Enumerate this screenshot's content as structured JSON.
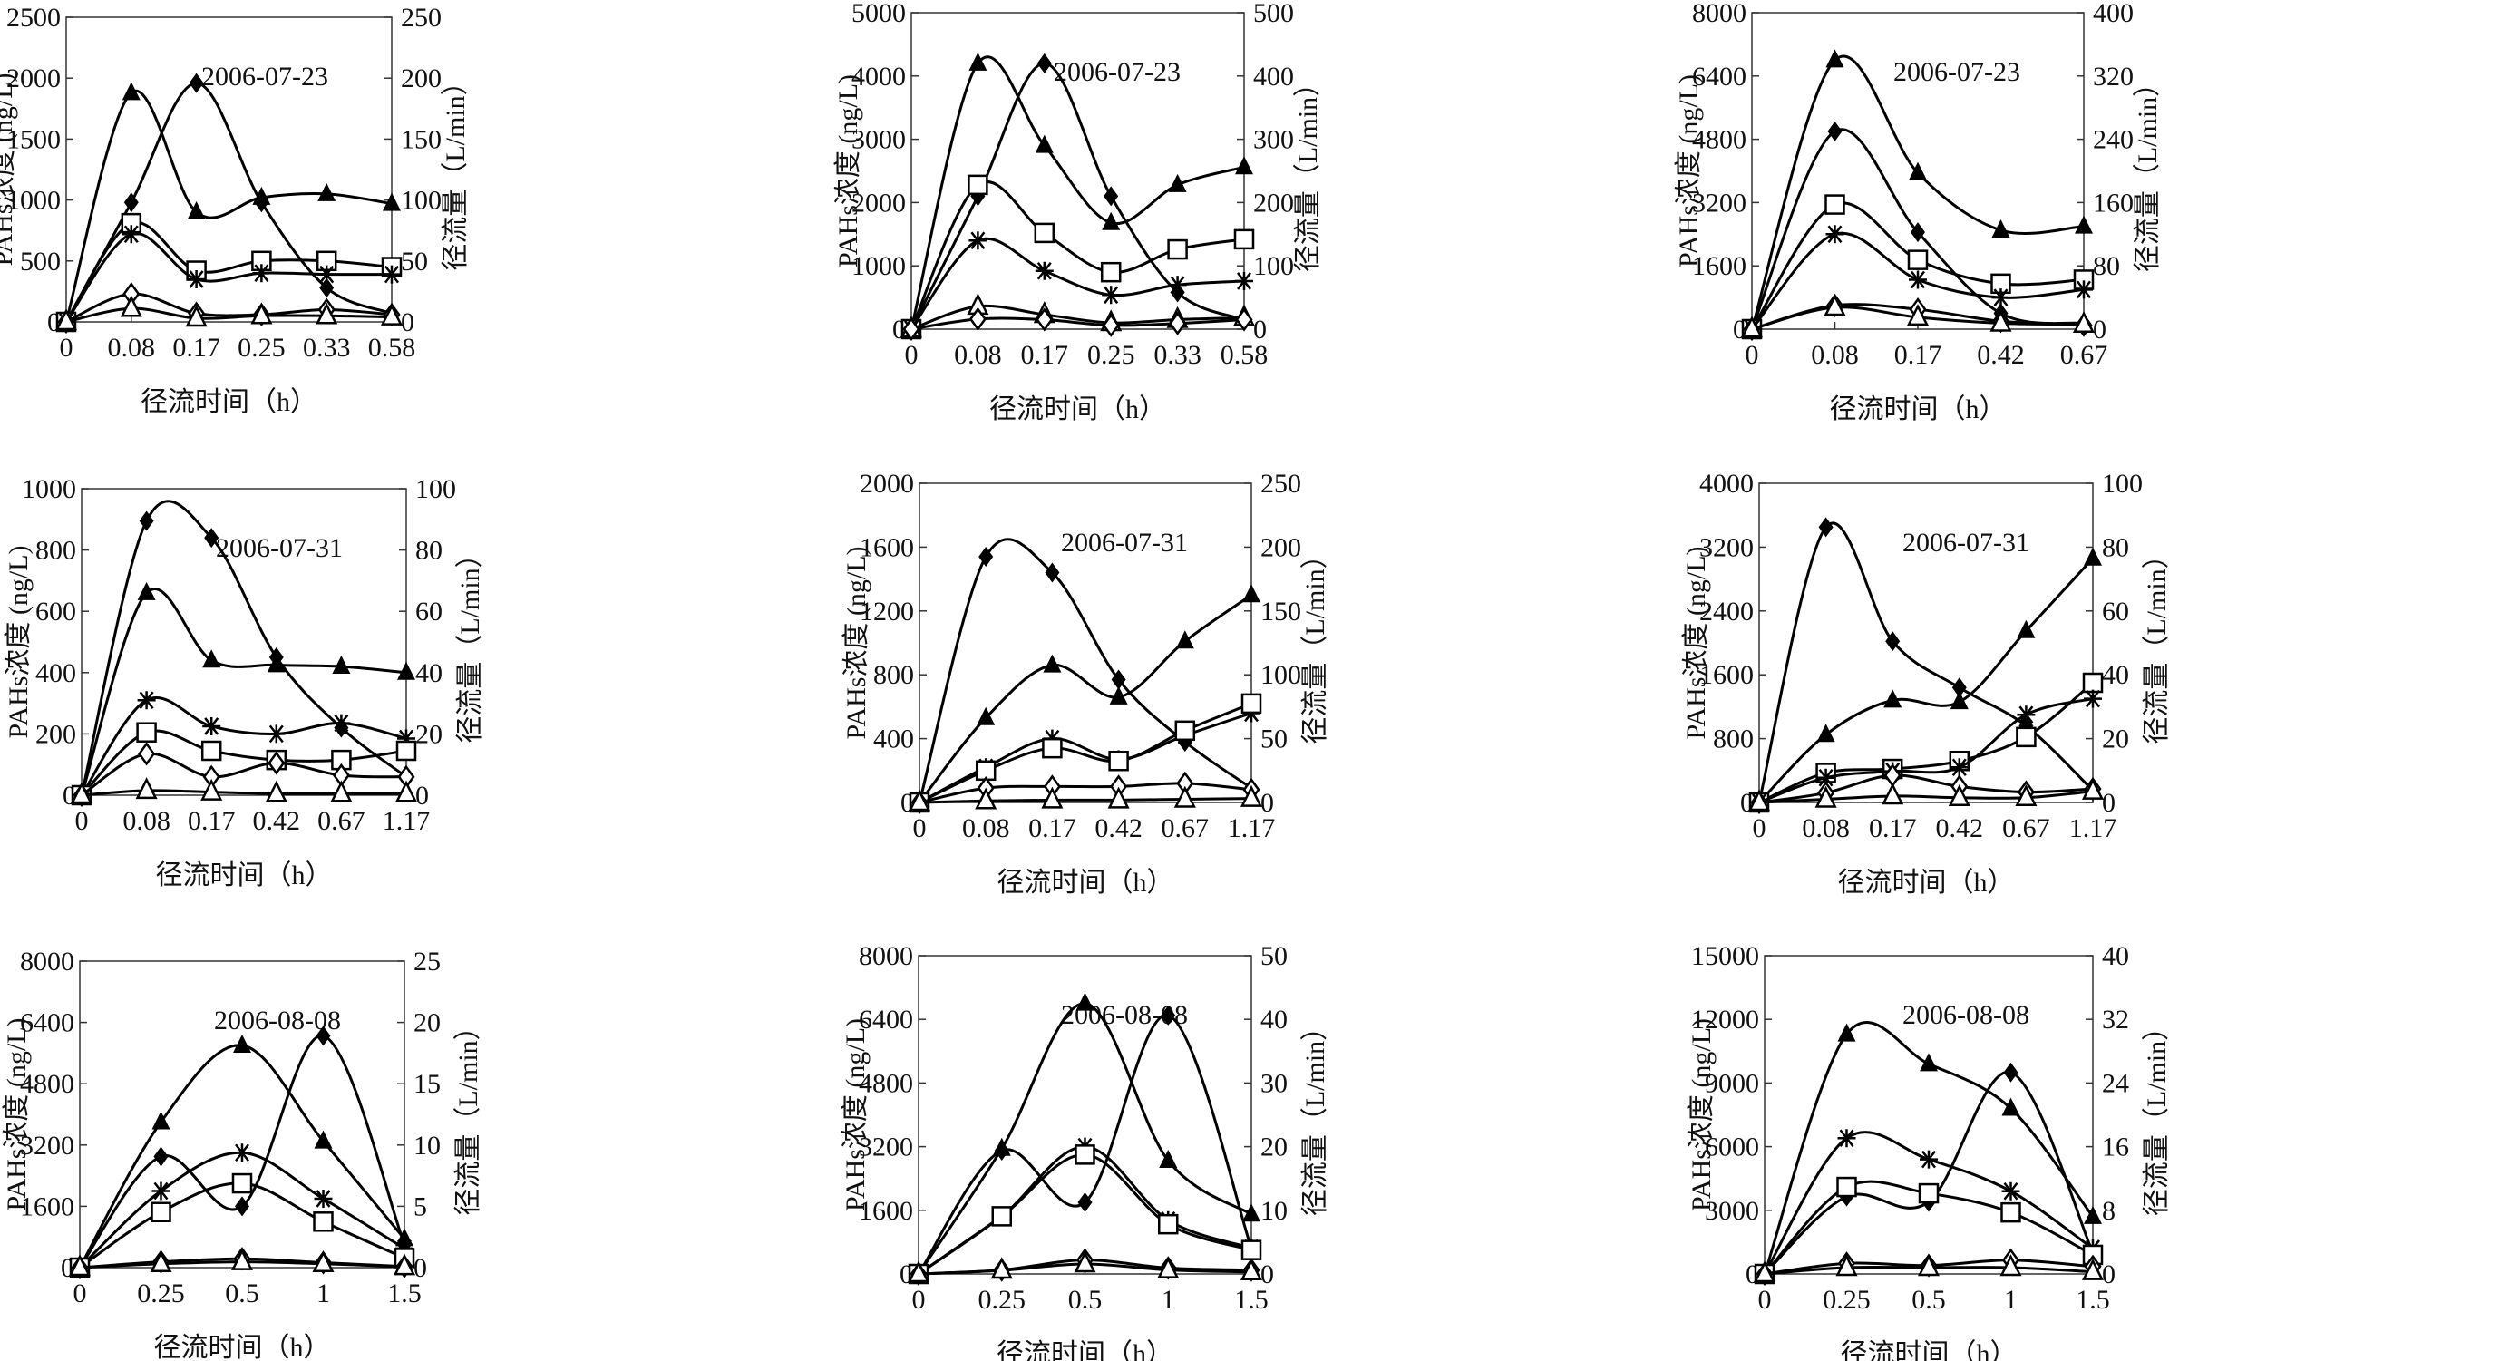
{
  "chart_data": [
    {
      "type": "line",
      "annotation": "2006-07-23",
      "xlabel": "径流时间（h）",
      "ylabel": "PAHs浓度 (ng/L)",
      "y2label": "径流量（L/min）",
      "categories": [
        "0",
        "0.08",
        "0.17",
        "0.25",
        "0.33",
        "0.58"
      ],
      "ylim": [
        0,
        2500
      ],
      "yticks": [
        0,
        500,
        1000,
        1500,
        2000,
        2500
      ],
      "y2lim": [
        0,
        250
      ],
      "y2ticks": [
        0,
        50,
        100,
        150,
        200,
        250
      ],
      "series": [
        {
          "marker": "filled-triangle",
          "values": [
            0,
            1880,
            900,
            1020,
            1050,
            970
          ]
        },
        {
          "marker": "filled-diamond",
          "values": [
            0,
            980,
            1960,
            980,
            280,
            70
          ]
        },
        {
          "marker": "open-square",
          "values": [
            0,
            810,
            420,
            500,
            500,
            450
          ]
        },
        {
          "marker": "asterisk",
          "values": [
            0,
            720,
            350,
            400,
            390,
            390
          ]
        },
        {
          "marker": "open-diamond",
          "values": [
            0,
            230,
            70,
            60,
            100,
            60
          ]
        },
        {
          "marker": "open-triangle",
          "values": [
            0,
            110,
            30,
            50,
            50,
            40
          ]
        }
      ]
    },
    {
      "type": "line",
      "annotation": "2006-07-23",
      "xlabel": "径流时间（h）",
      "ylabel": "PAHs浓度 (ng/L)",
      "y2label": "径流量（L/min）",
      "categories": [
        "0",
        "0.08",
        "0.17",
        "0.25",
        "0.33",
        "0.58"
      ],
      "ylim": [
        0,
        5000
      ],
      "yticks": [
        0,
        1000,
        2000,
        3000,
        4000,
        5000
      ],
      "y2lim": [
        0,
        500
      ],
      "y2ticks": [
        0,
        100,
        200,
        300,
        400,
        500
      ],
      "series": [
        {
          "marker": "filled-triangle",
          "values": [
            0,
            4200,
            2900,
            1680,
            2280,
            2560
          ]
        },
        {
          "marker": "filled-diamond",
          "values": [
            0,
            2100,
            4200,
            2100,
            580,
            150
          ]
        },
        {
          "marker": "open-square",
          "values": [
            0,
            2280,
            1520,
            900,
            1260,
            1420
          ]
        },
        {
          "marker": "asterisk",
          "values": [
            0,
            1400,
            920,
            540,
            700,
            760
          ]
        },
        {
          "marker": "open-triangle",
          "values": [
            0,
            360,
            230,
            100,
            150,
            180
          ]
        },
        {
          "marker": "open-diamond",
          "values": [
            0,
            160,
            150,
            60,
            90,
            150
          ]
        }
      ]
    },
    {
      "type": "line",
      "annotation": "2006-07-23",
      "xlabel": "径流时间（h）",
      "ylabel": "PAHs浓度 (ng/L)",
      "y2label": "径流量（L/min）",
      "categories": [
        "0",
        "0.08",
        "0.17",
        "0.42",
        "0.67"
      ],
      "ylim": [
        0,
        8000
      ],
      "yticks": [
        0,
        1600,
        3200,
        4800,
        6400,
        8000
      ],
      "y2lim": [
        0,
        400
      ],
      "y2ticks": [
        0,
        80,
        160,
        240,
        320,
        400
      ],
      "series": [
        {
          "marker": "filled-triangle",
          "values": [
            0,
            6800,
            3950,
            2500,
            2600
          ]
        },
        {
          "marker": "filled-diamond",
          "values": [
            0,
            5000,
            2450,
            400,
            150
          ]
        },
        {
          "marker": "open-square",
          "values": [
            0,
            3150,
            1750,
            1150,
            1250
          ]
        },
        {
          "marker": "asterisk",
          "values": [
            0,
            2400,
            1250,
            800,
            1000
          ]
        },
        {
          "marker": "open-diamond",
          "values": [
            0,
            600,
            500,
            200,
            100
          ]
        },
        {
          "marker": "open-triangle",
          "values": [
            0,
            550,
            300,
            150,
            120
          ]
        }
      ]
    },
    {
      "type": "line",
      "annotation": "2006-07-31",
      "xlabel": "径流时间（h）",
      "ylabel": "PAHs浓度 (ng/L)",
      "y2label": "径流量（L/min）",
      "categories": [
        "0",
        "0.08",
        "0.17",
        "0.42",
        "0.67",
        "1.17"
      ],
      "ylim": [
        0,
        1000
      ],
      "yticks": [
        0,
        200,
        400,
        600,
        800,
        1000
      ],
      "y2lim": [
        0,
        100
      ],
      "y2ticks": [
        0,
        20,
        40,
        60,
        80,
        100
      ],
      "series": [
        {
          "marker": "filled-diamond",
          "values": [
            0,
            895,
            840,
            450,
            220,
            60
          ]
        },
        {
          "marker": "filled-triangle",
          "values": [
            0,
            660,
            440,
            425,
            420,
            400
          ]
        },
        {
          "marker": "asterisk",
          "values": [
            0,
            310,
            225,
            200,
            235,
            185
          ]
        },
        {
          "marker": "open-square",
          "values": [
            0,
            205,
            145,
            115,
            115,
            145
          ]
        },
        {
          "marker": "open-diamond",
          "values": [
            0,
            135,
            60,
            105,
            65,
            60
          ]
        },
        {
          "marker": "open-triangle",
          "values": [
            0,
            15,
            10,
            5,
            5,
            5
          ]
        }
      ]
    },
    {
      "type": "line",
      "annotation": "2006-07-31",
      "xlabel": "径流时间（h）",
      "ylabel": "PAHs浓度 (ng/L)",
      "y2label": "径流量（L/min）",
      "categories": [
        "0",
        "0.08",
        "0.17",
        "0.42",
        "0.67",
        "1.17"
      ],
      "ylim": [
        0,
        2000
      ],
      "yticks": [
        0,
        400,
        800,
        1200,
        1600,
        2000
      ],
      "y2lim": [
        0,
        250
      ],
      "y2ticks": [
        0,
        50,
        100,
        150,
        200,
        250
      ],
      "series": [
        {
          "marker": "filled-diamond",
          "values": [
            0,
            1540,
            1440,
            770,
            380,
            90
          ]
        },
        {
          "marker": "filled-triangle",
          "values": [
            0,
            530,
            860,
            660,
            1010,
            1300
          ]
        },
        {
          "marker": "asterisk",
          "values": [
            0,
            220,
            400,
            270,
            420,
            560
          ]
        },
        {
          "marker": "open-square",
          "values": [
            0,
            200,
            340,
            260,
            450,
            620
          ]
        },
        {
          "marker": "open-diamond",
          "values": [
            0,
            90,
            100,
            100,
            120,
            80
          ]
        },
        {
          "marker": "open-triangle",
          "values": [
            0,
            10,
            15,
            15,
            20,
            25
          ]
        }
      ]
    },
    {
      "type": "line",
      "annotation": "2006-07-31",
      "xlabel": "径流时间（h）",
      "ylabel": "PAHs浓度 (ng/L)",
      "y2label": "径流量（L/min）",
      "categories": [
        "0",
        "0.08",
        "0.17",
        "0.42",
        "0.67",
        "1.17"
      ],
      "ylim": [
        0,
        4000
      ],
      "yticks": [
        0,
        800,
        1600,
        2400,
        3200,
        4000
      ],
      "y2lim": [
        0,
        100
      ],
      "y2ticks": [
        0,
        20,
        40,
        60,
        80,
        100
      ],
      "series": [
        {
          "marker": "filled-diamond",
          "values": [
            0,
            3450,
            2020,
            1440,
            960,
            150
          ]
        },
        {
          "marker": "filled-triangle",
          "values": [
            0,
            850,
            1280,
            1260,
            2150,
            3060
          ]
        },
        {
          "marker": "open-square",
          "values": [
            0,
            370,
            420,
            520,
            820,
            1500
          ]
        },
        {
          "marker": "asterisk",
          "values": [
            0,
            310,
            390,
            440,
            1100,
            1300
          ]
        },
        {
          "marker": "open-diamond",
          "values": [
            0,
            120,
            340,
            200,
            130,
            170
          ]
        },
        {
          "marker": "open-triangle",
          "values": [
            0,
            40,
            80,
            60,
            60,
            140
          ]
        }
      ]
    },
    {
      "type": "line",
      "annotation": "2006-08-08",
      "xlabel": "径流时间（h）",
      "ylabel": "PAHs浓度 (ng/L)",
      "y2label": "径流量（L/min）",
      "categories": [
        "0",
        "0.25",
        "0.5",
        "1",
        "1.5"
      ],
      "ylim": [
        0,
        8000
      ],
      "yticks": [
        0,
        1600,
        3200,
        4800,
        6400,
        8000
      ],
      "y2lim": [
        0,
        25
      ],
      "y2ticks": [
        0,
        5,
        10,
        15,
        20,
        25
      ],
      "series": [
        {
          "marker": "filled-triangle",
          "values": [
            0,
            3800,
            5800,
            3300,
            750
          ]
        },
        {
          "marker": "filled-diamond",
          "values": [
            0,
            2900,
            1600,
            6050,
            600
          ]
        },
        {
          "marker": "asterisk",
          "values": [
            0,
            2000,
            3000,
            1800,
            500
          ]
        },
        {
          "marker": "open-square",
          "values": [
            0,
            1450,
            2200,
            1200,
            250
          ]
        },
        {
          "marker": "open-diamond",
          "values": [
            0,
            150,
            230,
            130,
            30
          ]
        },
        {
          "marker": "open-triangle",
          "values": [
            0,
            100,
            150,
            100,
            20
          ]
        }
      ]
    },
    {
      "type": "line",
      "annotation": "2006-08-08",
      "xlabel": "径流时间（h）",
      "ylabel": "PAHs浓度 (ng/L)",
      "y2label": "径流量（L/min）",
      "categories": [
        "0",
        "0.25",
        "0.5",
        "1",
        "1.5"
      ],
      "ylim": [
        0,
        8000
      ],
      "yticks": [
        0,
        1600,
        3200,
        4800,
        6400,
        8000
      ],
      "y2lim": [
        0,
        50
      ],
      "y2ticks": [
        0,
        10,
        20,
        30,
        40,
        50
      ],
      "series": [
        {
          "marker": "filled-triangle",
          "values": [
            0,
            3150,
            6800,
            2850,
            1500
          ]
        },
        {
          "marker": "filled-diamond",
          "values": [
            0,
            3100,
            1800,
            6500,
            650
          ]
        },
        {
          "marker": "asterisk",
          "values": [
            0,
            1450,
            3200,
            1350,
            650
          ]
        },
        {
          "marker": "open-square",
          "values": [
            0,
            1450,
            3000,
            1250,
            600
          ]
        },
        {
          "marker": "open-diamond",
          "values": [
            0,
            100,
            350,
            150,
            100
          ]
        },
        {
          "marker": "open-triangle",
          "values": [
            0,
            90,
            250,
            100,
            50
          ]
        }
      ]
    },
    {
      "type": "line",
      "annotation": "2006-08-08",
      "xlabel": "径流时间（h）",
      "ylabel": "PAHs浓度 (ng/L)",
      "y2label": "径流量（L/min）",
      "categories": [
        "0",
        "0.25",
        "0.5",
        "1",
        "1.5"
      ],
      "ylim": [
        0,
        15000
      ],
      "yticks": [
        0,
        3000,
        6000,
        9000,
        12000,
        15000
      ],
      "y2lim": [
        0,
        40
      ],
      "y2ticks": [
        0,
        8,
        16,
        24,
        32,
        40
      ],
      "series": [
        {
          "marker": "filled-triangle",
          "values": [
            0,
            11300,
            9900,
            7800,
            2700
          ]
        },
        {
          "marker": "filled-diamond",
          "values": [
            0,
            3650,
            3400,
            9500,
            1000
          ]
        },
        {
          "marker": "asterisk",
          "values": [
            0,
            6400,
            5400,
            3900,
            1200
          ]
        },
        {
          "marker": "open-square",
          "values": [
            0,
            4100,
            3800,
            2900,
            900
          ]
        },
        {
          "marker": "open-diamond",
          "values": [
            0,
            500,
            400,
            650,
            350
          ]
        },
        {
          "marker": "open-triangle",
          "values": [
            0,
            300,
            300,
            300,
            100
          ]
        }
      ]
    }
  ]
}
